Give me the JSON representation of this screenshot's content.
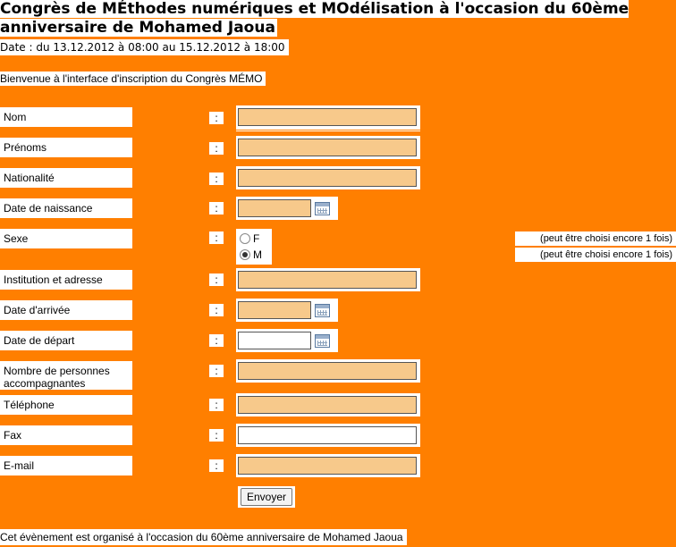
{
  "header": {
    "title": "Congrès de MÉthodes numériques et MOdélisation à l'occasion du 60ème anniversaire de Mohamed Jaoua",
    "date": "Date : du 13.12.2012 à 08:00 au 15.12.2012 à 18:00"
  },
  "intro": "Bienvenue à l'interface d'inscription du Congrès MÉMO",
  "form": {
    "colon": ":",
    "fields": [
      {
        "label": "Nom",
        "value": ""
      },
      {
        "label": "Prénoms",
        "value": ""
      },
      {
        "label": "Nationalité",
        "value": ""
      },
      {
        "label": "Date de naissance",
        "value": ""
      },
      {
        "label": "Sexe",
        "value": ""
      },
      {
        "label": "Institution et adresse",
        "value": ""
      },
      {
        "label": "Date d'arrivée",
        "value": ""
      },
      {
        "label": "Date de départ",
        "value": ""
      },
      {
        "label": "Nombre de personnes accompagnantes",
        "value": ""
      },
      {
        "label": "Téléphone",
        "value": ""
      },
      {
        "label": "Fax",
        "value": ""
      },
      {
        "label": "E-mail",
        "value": ""
      }
    ],
    "sexe_options": [
      {
        "label": "F",
        "selected": false,
        "note": "(peut être choisi encore 1 fois)"
      },
      {
        "label": "M",
        "selected": true,
        "note": "(peut être choisi encore 1 fois)"
      }
    ],
    "submit_label": "Envoyer"
  },
  "footer": "Cet évènement est organisé à l'occasion du 60ème anniversaire de Mohamed Jaoua",
  "colors": {
    "background": "#ff7f00",
    "input_fill": "#f7c98b"
  }
}
